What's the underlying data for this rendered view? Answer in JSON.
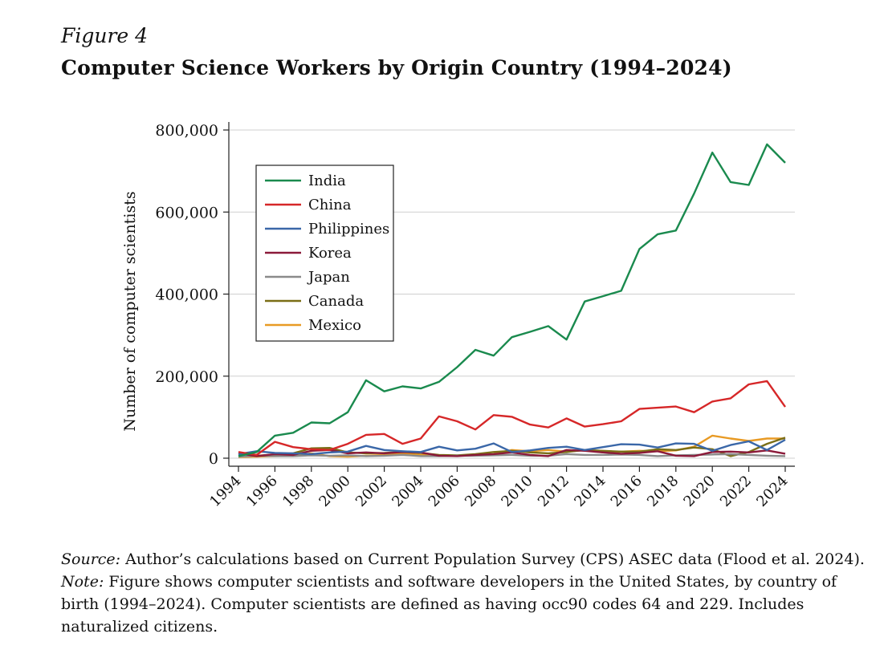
{
  "figure_label": "Figure 4",
  "figure_title": "Computer Science Workers by Origin Country (1994–2024)",
  "notes": {
    "source_label": "Source:",
    "source_text": "Author’s calculations based on Current Population Survey (CPS) ASEC data (Flood et al. 2024).",
    "note_label": "Note:",
    "note_text": "Figure shows computer scientists and software developers in the United States, by country of birth (1994–2024). Computer scientists are defined as having occ90 codes 64 and 229. Includes naturalized citizens."
  },
  "chart_data": {
    "type": "line",
    "ylabel": "Number of computer scientists",
    "xlabel": "",
    "ylim": [
      0,
      800000
    ],
    "xlim": [
      1994,
      2024
    ],
    "yticks": [
      0,
      200000,
      400000,
      600000,
      800000
    ],
    "ytick_labels": [
      "0",
      "200,000",
      "400,000",
      "600,000",
      "800,000"
    ],
    "xticks": [
      1994,
      1996,
      1998,
      2000,
      2002,
      2004,
      2006,
      2008,
      2010,
      2012,
      2014,
      2016,
      2018,
      2020,
      2022,
      2024
    ],
    "xtick_labels": [
      "1994",
      "1996",
      "1998",
      "2000",
      "2002",
      "2004",
      "2006",
      "2008",
      "2010",
      "2012",
      "2014",
      "2016",
      "2018",
      "2020",
      "2022",
      "2024"
    ],
    "grid": true,
    "legend_position": "top-left",
    "x": [
      1994,
      1995,
      1996,
      1997,
      1998,
      1999,
      2000,
      2001,
      2002,
      2003,
      2004,
      2005,
      2006,
      2007,
      2008,
      2009,
      2010,
      2011,
      2012,
      2013,
      2014,
      2015,
      2016,
      2017,
      2018,
      2019,
      2020,
      2021,
      2022,
      2023,
      2024
    ],
    "series": [
      {
        "name": "India",
        "color": "#1a8a4e",
        "values": [
          5000,
          15000,
          55000,
          62000,
          87000,
          85000,
          112000,
          190000,
          163000,
          175000,
          170000,
          186000,
          222000,
          264000,
          250000,
          295000,
          308000,
          322000,
          289000,
          382000,
          395000,
          408000,
          510000,
          546000,
          555000,
          645000,
          745000,
          673000,
          666000,
          765000,
          720000
        ]
      },
      {
        "name": "China",
        "color": "#d62728",
        "values": [
          15000,
          8000,
          40000,
          27000,
          22000,
          20000,
          35000,
          57000,
          59000,
          35000,
          48000,
          102000,
          90000,
          70000,
          105000,
          101000,
          82000,
          75000,
          97000,
          77000,
          83000,
          90000,
          120000,
          123000,
          126000,
          112000,
          138000,
          146000,
          180000,
          188000,
          125000
        ]
      },
      {
        "name": "Philippines",
        "color": "#3a67a8",
        "values": [
          10000,
          17000,
          13000,
          12000,
          10000,
          14000,
          16000,
          30000,
          20000,
          17000,
          15000,
          28000,
          19000,
          23000,
          36000,
          15000,
          19000,
          25000,
          28000,
          20000,
          27000,
          34000,
          33000,
          26000,
          36000,
          35000,
          18000,
          32000,
          41000,
          20000,
          45000
        ]
      },
      {
        "name": "Korea",
        "color": "#8b1a3a",
        "values": [
          12000,
          5000,
          10000,
          8000,
          18000,
          20000,
          12000,
          14000,
          12000,
          15000,
          14000,
          6000,
          5000,
          8000,
          10000,
          14000,
          8000,
          5000,
          20000,
          18000,
          14000,
          11000,
          13000,
          17000,
          6000,
          5000,
          15000,
          16000,
          14000,
          19000,
          11000
        ]
      },
      {
        "name": "Japan",
        "color": "#8a8a8a",
        "values": [
          4000,
          6000,
          5000,
          5000,
          7000,
          6000,
          7000,
          5000,
          6000,
          8000,
          5000,
          5000,
          6000,
          6000,
          7000,
          8000,
          6000,
          6000,
          10000,
          8000,
          8000,
          9000,
          8000,
          5000,
          7000,
          8000,
          9000,
          10000,
          8000,
          6000,
          5000
        ]
      },
      {
        "name": "Canada",
        "color": "#7a6e16",
        "values": [
          8000,
          6000,
          9000,
          12000,
          24000,
          25000,
          14000,
          12000,
          13000,
          15000,
          13000,
          8000,
          7000,
          10000,
          15000,
          18000,
          14000,
          12000,
          15000,
          20000,
          18000,
          16000,
          16000,
          22000,
          20000,
          26000,
          22000,
          5000,
          15000,
          35000,
          50000
        ]
      },
      {
        "name": "Mexico",
        "color": "#e89a24",
        "values": [
          3000,
          4000,
          5000,
          6000,
          12000,
          5000,
          4000,
          6000,
          8000,
          12000,
          8000,
          7000,
          6000,
          8000,
          10000,
          20000,
          17000,
          20000,
          16000,
          20000,
          14000,
          16000,
          18000,
          17000,
          19000,
          28000,
          55000,
          48000,
          42000,
          48000,
          48000
        ]
      }
    ]
  }
}
